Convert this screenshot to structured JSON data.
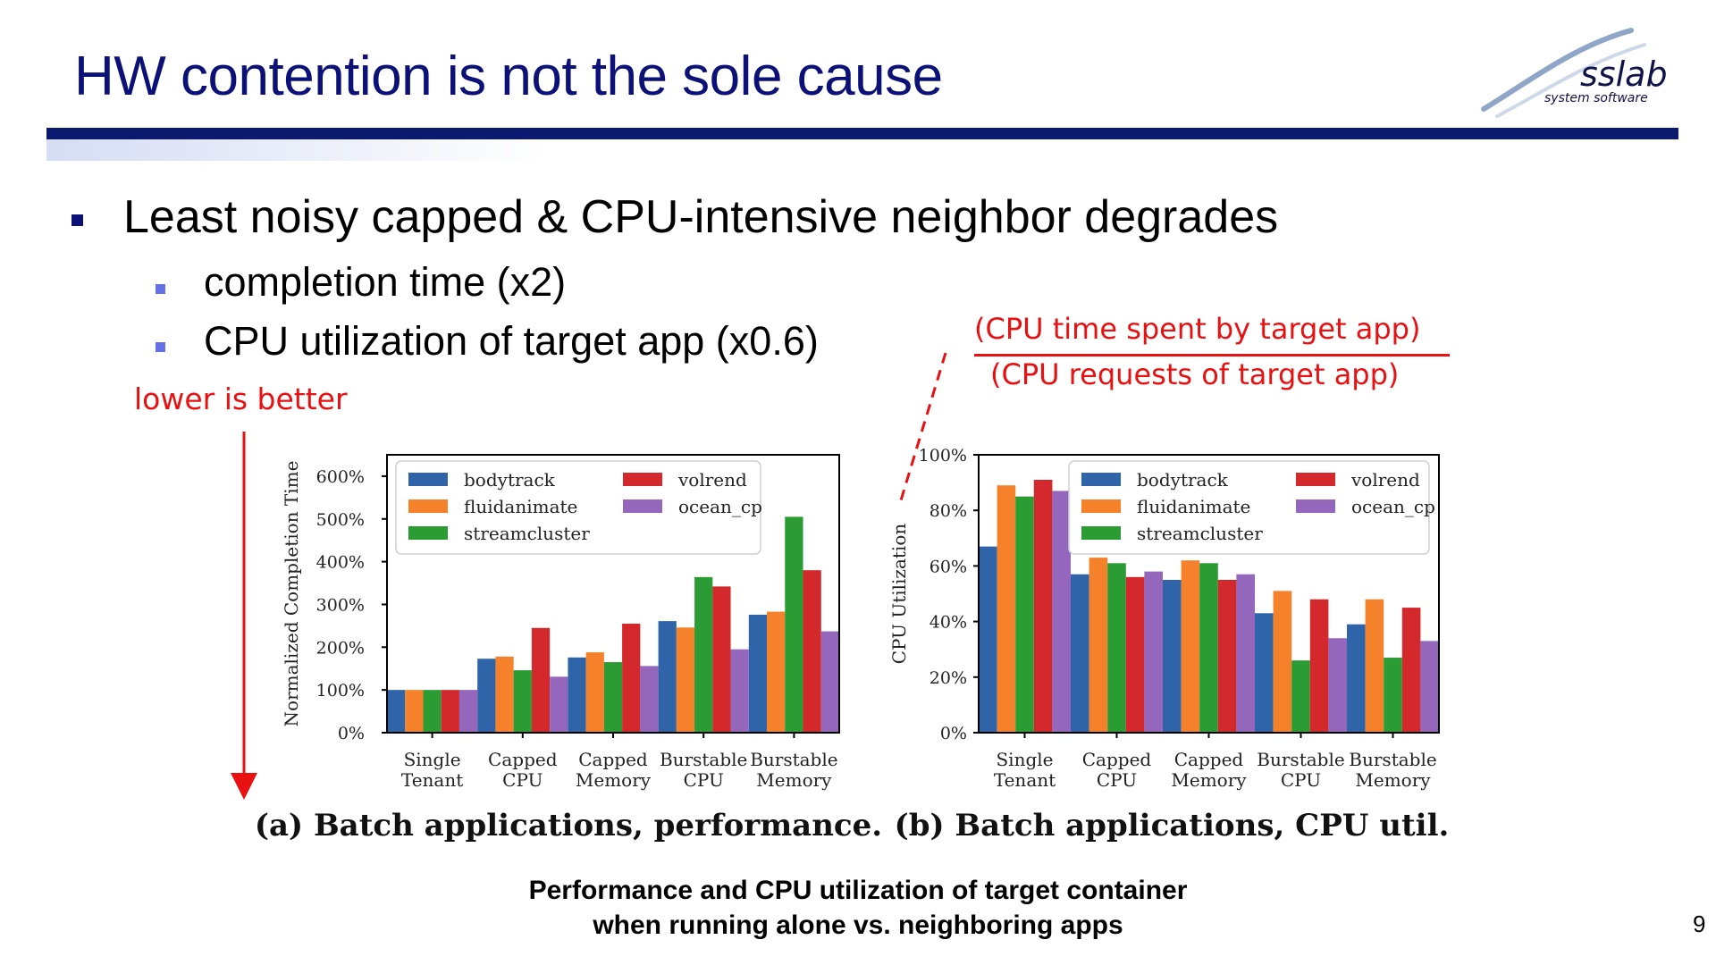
{
  "slide": {
    "title": "HW contention is not the sole cause",
    "bullet_main": "Least noisy capped & CPU-intensive neighbor degrades",
    "sub_bullets": [
      "completion time (x2)",
      "CPU utilization of target app (x0.6)"
    ],
    "annotation_lower": "lower is better",
    "fraction_numerator": "(CPU time spent by target app)",
    "fraction_denominator": "(CPU requests of target app)",
    "caption_line1": "Performance and CPU utilization of target container",
    "caption_line2": "when running alone vs. neighboring apps",
    "page_number": "9",
    "logo_text": "sslab",
    "logo_subtext": "system software",
    "colors": {
      "title": "#0b1176",
      "annotation": "#e81010",
      "bodytrack": "#2f64a8",
      "fluidanimate": "#f5822a",
      "streamcluster": "#2a9c33",
      "volrend": "#d3282c",
      "ocean_cp": "#9467bd"
    }
  },
  "chart_data": [
    {
      "type": "bar",
      "caption": "(a) Batch applications, performance.",
      "ylabel": "Normalized Completion Time",
      "categories": [
        [
          "Single",
          "Tenant"
        ],
        [
          "Capped",
          "CPU"
        ],
        [
          "Capped",
          "Memory"
        ],
        [
          "Burstable",
          "CPU"
        ],
        [
          "Burstable",
          "Memory"
        ]
      ],
      "yticks": [
        "0%",
        "100%",
        "200%",
        "300%",
        "400%",
        "500%",
        "600%"
      ],
      "ylim": [
        0,
        650
      ],
      "legend_placement": "top-left",
      "series": [
        {
          "name": "bodytrack",
          "values": [
            100,
            173,
            176,
            261,
            276
          ]
        },
        {
          "name": "fluidanimate",
          "values": [
            100,
            178,
            188,
            246,
            283
          ]
        },
        {
          "name": "streamcluster",
          "values": [
            100,
            146,
            165,
            364,
            505
          ]
        },
        {
          "name": "volrend",
          "values": [
            100,
            245,
            255,
            342,
            380
          ]
        },
        {
          "name": "ocean_cp",
          "values": [
            100,
            131,
            156,
            195,
            237
          ]
        }
      ]
    },
    {
      "type": "bar",
      "caption": "(b) Batch applications, CPU util.",
      "ylabel": "CPU Utilization",
      "categories": [
        [
          "Single",
          "Tenant"
        ],
        [
          "Capped",
          "CPU"
        ],
        [
          "Capped",
          "Memory"
        ],
        [
          "Burstable",
          "CPU"
        ],
        [
          "Burstable",
          "Memory"
        ]
      ],
      "yticks": [
        "0%",
        "20%",
        "40%",
        "60%",
        "80%",
        "100%"
      ],
      "ylim": [
        0,
        100
      ],
      "legend_placement": "top-right",
      "series": [
        {
          "name": "bodytrack",
          "values": [
            67,
            57,
            55,
            43,
            39
          ]
        },
        {
          "name": "fluidanimate",
          "values": [
            89,
            63,
            62,
            51,
            48
          ]
        },
        {
          "name": "streamcluster",
          "values": [
            85,
            61,
            61,
            26,
            27
          ]
        },
        {
          "name": "volrend",
          "values": [
            91,
            56,
            55,
            48,
            45
          ]
        },
        {
          "name": "ocean_cp",
          "values": [
            87,
            58,
            57,
            34,
            33
          ]
        }
      ]
    }
  ]
}
